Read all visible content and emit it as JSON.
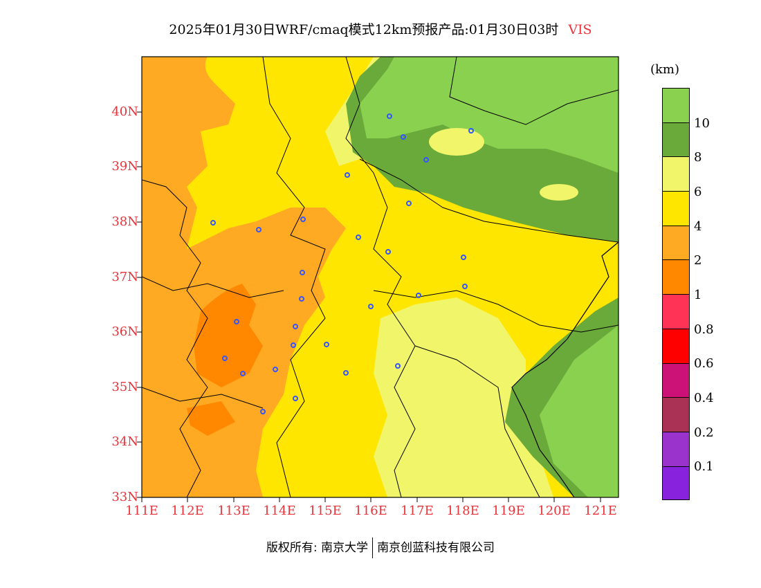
{
  "title": {
    "main": "2025年01月30日WRF/cmaq模式12km预报产品:01月30日03时",
    "variable": "VIS"
  },
  "map": {
    "lat_labels": [
      "40N",
      "39N",
      "38N",
      "37N",
      "36N",
      "35N",
      "34N",
      "33N"
    ],
    "lon_labels": [
      "111E",
      "112E",
      "113E",
      "114E",
      "115E",
      "116E",
      "117E",
      "118E",
      "119E",
      "120E",
      "121E"
    ]
  },
  "legend": {
    "unit": "(km)",
    "colors": [
      "#8bd150",
      "#6aaa3a",
      "#f0f56a",
      "#ffe600",
      "#ffaa22",
      "#ff8800",
      "#ff3355",
      "#ff0000",
      "#cc1177",
      "#aa3355",
      "#9933cc",
      "#8822dd"
    ],
    "labels": [
      "10",
      "8",
      "6",
      "4",
      "2",
      "1",
      "0.8",
      "0.6",
      "0.4",
      "0.2",
      "0.1"
    ]
  },
  "footer": {
    "left": "版权所有: 南京大学",
    "right": "南京创蓝科技有限公司"
  }
}
